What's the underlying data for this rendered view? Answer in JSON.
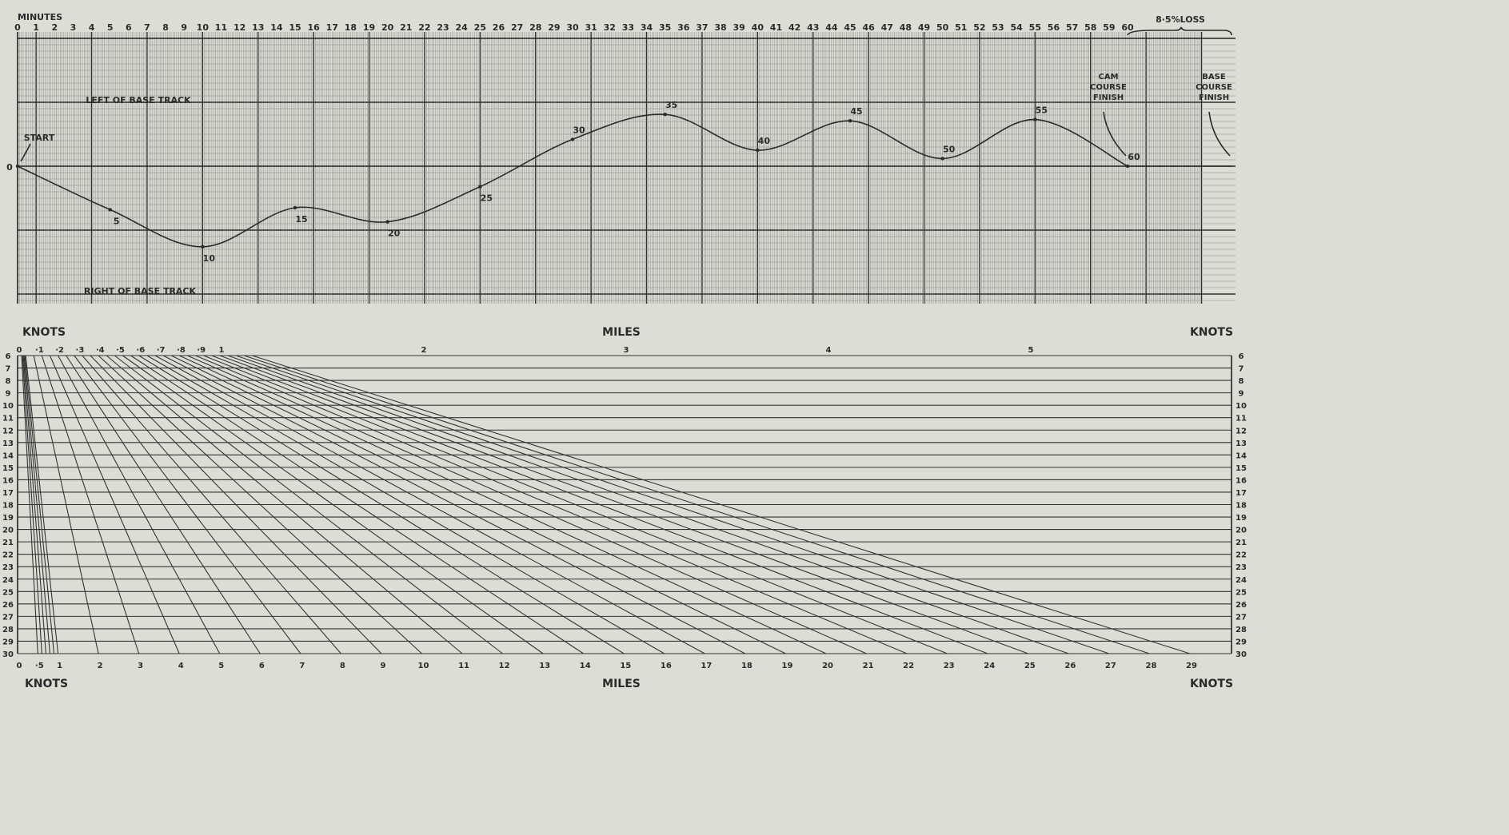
{
  "colors": {
    "paper": "#ddddd6",
    "ink": "#2a2a2a"
  },
  "track_chart": {
    "minutes_label": "MINUTES",
    "minute_ticks": [
      "0",
      "1",
      "2",
      "3",
      "4",
      "5",
      "6",
      "7",
      "8",
      "9",
      "10",
      "11",
      "12",
      "13",
      "14",
      "15",
      "16",
      "17",
      "18",
      "19",
      "20",
      "21",
      "22",
      "23",
      "24",
      "25",
      "26",
      "27",
      "28",
      "29",
      "30",
      "31",
      "32",
      "33",
      "34",
      "35",
      "36",
      "37",
      "38",
      "39",
      "40",
      "41",
      "42",
      "43",
      "44",
      "45",
      "46",
      "47",
      "48",
      "49",
      "50",
      "51",
      "52",
      "53",
      "54",
      "55",
      "56",
      "57",
      "58",
      "59",
      "60"
    ],
    "zero_label": "0",
    "left_label": "LEFT OF BASE TRACK",
    "right_label": "RIGHT OF BASE TRACK",
    "start_label": "START",
    "loss_label": "8·5%LOSS",
    "cam_finish_label": [
      "CAM",
      "COURSE",
      "FINISH"
    ],
    "base_finish_label": [
      "BASE",
      "COURSE",
      "FINISH"
    ]
  },
  "chart_data": [
    {
      "type": "line",
      "xlabel": "MINUTES",
      "xlim": [
        0,
        60
      ],
      "ylabel": "",
      "ylim": [
        -2.1,
        2.1
      ],
      "y_reference_labels": {
        "positive": "LEFT OF BASE TRACK",
        "negative": "RIGHT OF BASE TRACK"
      },
      "series": [
        {
          "x": [
            0,
            5,
            10,
            15,
            20,
            25,
            30,
            35,
            40,
            45,
            50,
            55,
            60
          ],
          "y": [
            0,
            -0.68,
            -1.26,
            -0.65,
            -0.87,
            -0.32,
            0.42,
            0.81,
            0.25,
            0.71,
            0.12,
            0.73,
            0
          ],
          "labels": [
            "",
            "5",
            "10",
            "15",
            "20",
            "25",
            "30",
            "35",
            "40",
            "45",
            "50",
            "55",
            "60"
          ]
        }
      ],
      "annotations": [
        "START",
        "CAM COURSE FINISH",
        "BASE COURSE FINISH",
        "8·5%LOSS"
      ]
    },
    {
      "type": "line",
      "title": "",
      "top_axis_label": "MILES",
      "top_miles_ticks": [
        "0",
        "·1",
        "·2",
        "·3",
        "·4",
        "·5",
        "·6",
        "·7",
        "·8",
        "·9",
        "1",
        "2",
        "3",
        "4",
        "5"
      ],
      "bottom_axis_label": "MILES",
      "bottom_miles_ticks": [
        "0",
        "·5",
        "1",
        "2",
        "3",
        "4",
        "5",
        "6",
        "7",
        "8",
        "9",
        "10",
        "11",
        "12",
        "13",
        "14",
        "15",
        "16",
        "17",
        "18",
        "19",
        "20",
        "21",
        "22",
        "23",
        "24",
        "25",
        "26",
        "27",
        "28",
        "29"
      ],
      "knots_label": "KNOTS",
      "knots_rows": [
        "6",
        "7",
        "8",
        "9",
        "10",
        "11",
        "12",
        "13",
        "14",
        "15",
        "16",
        "17",
        "18",
        "19",
        "20",
        "21",
        "22",
        "23",
        "24",
        "25",
        "26",
        "27",
        "28",
        "29",
        "30"
      ]
    }
  ]
}
